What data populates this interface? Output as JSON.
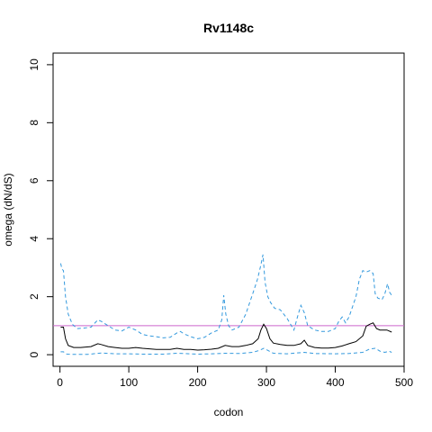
{
  "chart_data": {
    "type": "line",
    "title": "Rv1148c",
    "xlabel": "codon",
    "ylabel": "omega (dN/dS)",
    "xlim": [
      -10,
      500
    ],
    "ylim": [
      -0.4,
      10.4
    ],
    "x_ticks": [
      0,
      100,
      200,
      300,
      400,
      500
    ],
    "y_ticks": [
      0,
      2,
      4,
      6,
      8,
      10
    ],
    "grid": false,
    "legend": "none",
    "reference_line": {
      "y": 1,
      "color": "#cc66cc"
    },
    "series": [
      {
        "role": "estimate",
        "color": "#000000",
        "dash": "solid",
        "x": [
          1,
          5,
          8,
          12,
          20,
          30,
          45,
          55,
          60,
          70,
          80,
          90,
          100,
          110,
          120,
          140,
          160,
          170,
          180,
          190,
          200,
          210,
          220,
          230,
          240,
          250,
          260,
          270,
          280,
          288,
          292,
          296,
          300,
          305,
          310,
          320,
          330,
          340,
          350,
          355,
          360,
          370,
          380,
          390,
          400,
          410,
          420,
          430,
          440,
          445,
          450,
          455,
          460,
          465,
          470,
          475,
          482
        ],
        "y": [
          0.95,
          0.95,
          0.55,
          0.32,
          0.25,
          0.25,
          0.28,
          0.38,
          0.35,
          0.28,
          0.25,
          0.22,
          0.22,
          0.25,
          0.22,
          0.18,
          0.18,
          0.22,
          0.18,
          0.18,
          0.16,
          0.17,
          0.19,
          0.22,
          0.32,
          0.28,
          0.28,
          0.32,
          0.38,
          0.55,
          0.85,
          1.05,
          0.9,
          0.55,
          0.4,
          0.35,
          0.32,
          0.32,
          0.38,
          0.5,
          0.32,
          0.25,
          0.23,
          0.23,
          0.25,
          0.3,
          0.38,
          0.45,
          0.65,
          0.98,
          1.05,
          1.1,
          0.9,
          0.85,
          0.85,
          0.85,
          0.78
        ]
      },
      {
        "role": "upper bound",
        "color": "#3399dd",
        "dash": "dashed",
        "x": [
          1,
          3,
          5,
          8,
          12,
          18,
          25,
          35,
          45,
          55,
          60,
          70,
          80,
          90,
          100,
          105,
          110,
          120,
          130,
          140,
          150,
          160,
          170,
          175,
          180,
          190,
          200,
          210,
          220,
          230,
          235,
          238,
          241,
          245,
          250,
          260,
          270,
          280,
          287,
          292,
          295,
          298,
          302,
          306,
          312,
          320,
          330,
          340,
          345,
          350,
          355,
          360,
          370,
          380,
          390,
          400,
          405,
          410,
          415,
          420,
          430,
          435,
          440,
          445,
          450,
          455,
          458,
          462,
          468,
          472,
          476,
          479,
          482
        ],
        "y": [
          3.15,
          2.95,
          2.9,
          2.0,
          1.4,
          1.05,
          0.9,
          0.92,
          0.95,
          1.2,
          1.15,
          1.0,
          0.85,
          0.82,
          0.95,
          0.9,
          0.85,
          0.7,
          0.65,
          0.62,
          0.58,
          0.6,
          0.75,
          0.8,
          0.72,
          0.62,
          0.55,
          0.6,
          0.75,
          0.85,
          1.2,
          2.05,
          1.4,
          1.0,
          0.85,
          0.95,
          1.4,
          2.1,
          2.6,
          3.1,
          3.45,
          2.5,
          2.0,
          1.8,
          1.6,
          1.55,
          1.25,
          0.85,
          1.3,
          1.7,
          1.45,
          1.0,
          0.85,
          0.8,
          0.8,
          0.9,
          1.15,
          1.3,
          1.1,
          1.3,
          2.0,
          2.6,
          2.9,
          2.85,
          2.9,
          2.8,
          2.1,
          1.95,
          1.9,
          2.1,
          2.45,
          2.15,
          2.05
        ]
      },
      {
        "role": "lower bound",
        "color": "#3399dd",
        "dash": "dashed",
        "x": [
          1,
          5,
          10,
          20,
          40,
          60,
          80,
          100,
          120,
          150,
          170,
          200,
          220,
          240,
          260,
          280,
          290,
          296,
          302,
          310,
          330,
          355,
          370,
          400,
          420,
          440,
          450,
          458,
          465,
          472,
          478,
          482
        ],
        "y": [
          0.1,
          0.1,
          0.02,
          0.01,
          0.01,
          0.06,
          0.03,
          0.03,
          0.02,
          0.02,
          0.05,
          0.02,
          0.03,
          0.05,
          0.04,
          0.08,
          0.15,
          0.22,
          0.15,
          0.05,
          0.03,
          0.08,
          0.04,
          0.03,
          0.04,
          0.08,
          0.2,
          0.22,
          0.12,
          0.08,
          0.12,
          0.08
        ]
      }
    ]
  }
}
